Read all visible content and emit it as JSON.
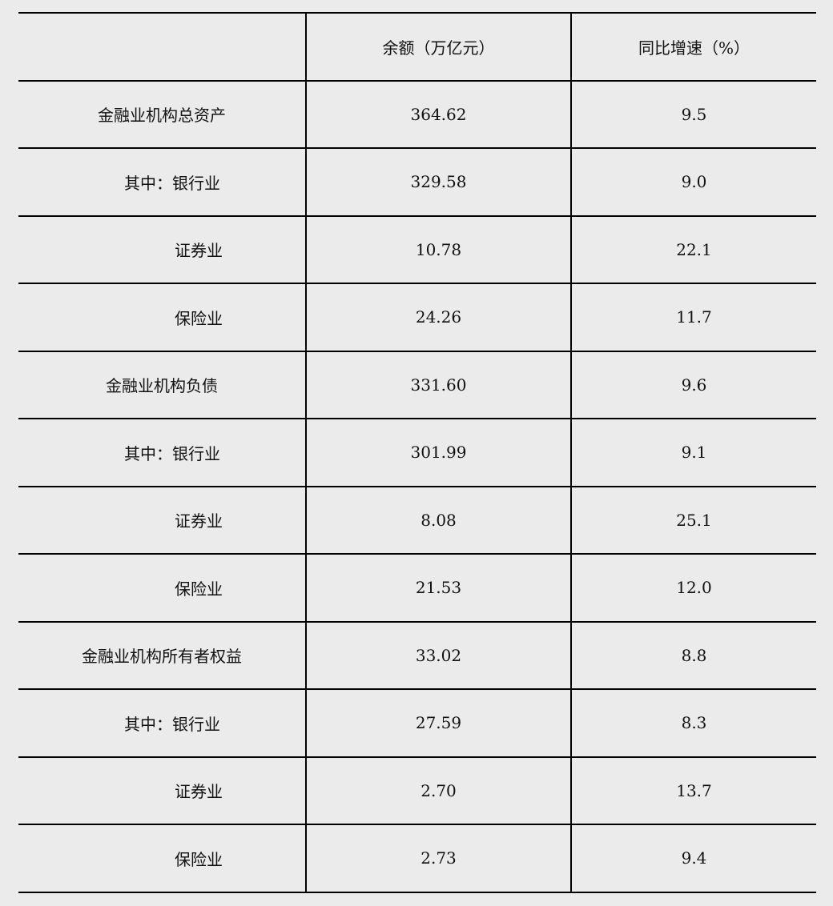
{
  "table": {
    "headers": [
      "",
      "余额（万亿元）",
      "同比增速（%）"
    ],
    "rows": [
      {
        "label": "金融业机构总资产",
        "level": "total",
        "balance": "364.62",
        "growth": "9.5"
      },
      {
        "label": "其中：银行业",
        "level": "sub1",
        "balance": "329.58",
        "growth": "9.0"
      },
      {
        "label": "证券业",
        "level": "sub2",
        "balance": "10.78",
        "growth": "22.1"
      },
      {
        "label": "保险业",
        "level": "sub2",
        "balance": "24.26",
        "growth": "11.7"
      },
      {
        "label": "金融业机构负债",
        "level": "total",
        "balance": "331.60",
        "growth": "9.6"
      },
      {
        "label": "其中：银行业",
        "level": "sub1",
        "balance": "301.99",
        "growth": "9.1"
      },
      {
        "label": "证券业",
        "level": "sub2",
        "balance": "8.08",
        "growth": "25.1"
      },
      {
        "label": "保险业",
        "level": "sub2",
        "balance": "21.53",
        "growth": "12.0"
      },
      {
        "label": "金融业机构所有者权益",
        "level": "total",
        "balance": "33.02",
        "growth": "8.8"
      },
      {
        "label": "其中：银行业",
        "level": "sub1",
        "balance": "27.59",
        "growth": "8.3"
      },
      {
        "label": "证券业",
        "level": "sub2",
        "balance": "2.70",
        "growth": "13.7"
      },
      {
        "label": "保险业",
        "level": "sub2",
        "balance": "2.73",
        "growth": "9.4"
      }
    ]
  }
}
